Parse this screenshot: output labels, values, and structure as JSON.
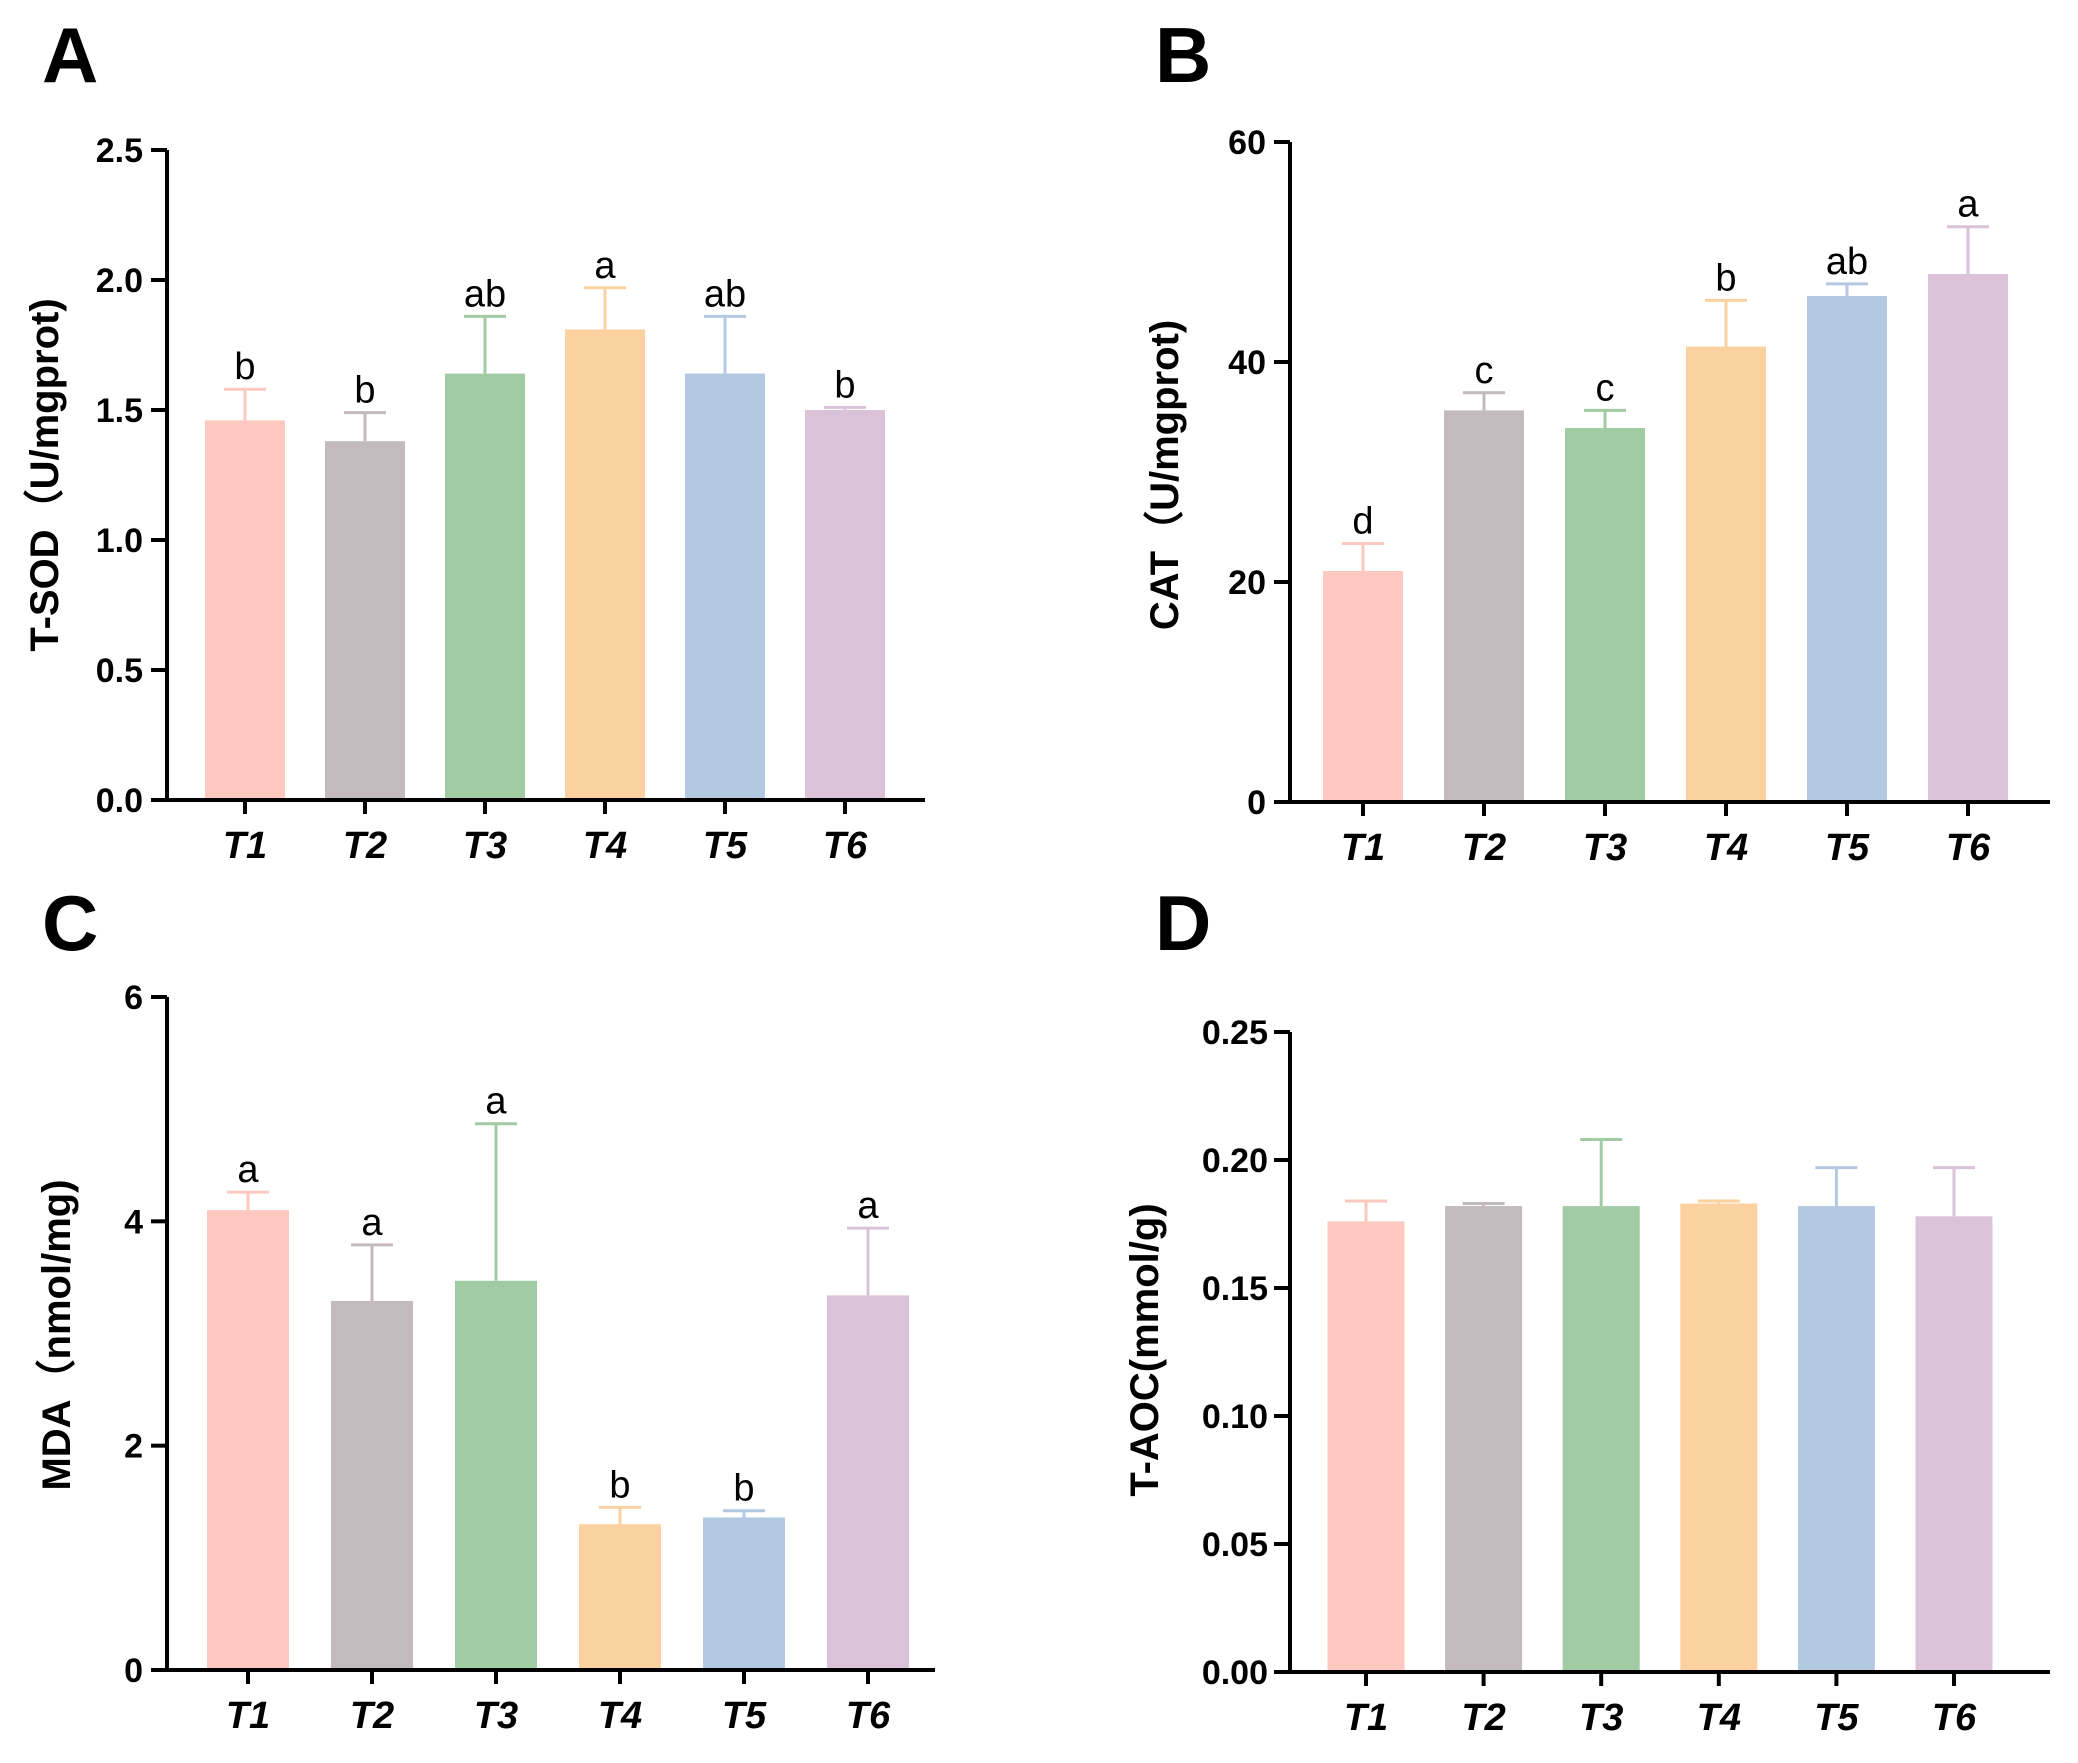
{
  "colors": [
    "#fdc8bf",
    "#c2babd",
    "#a1cba2",
    "#fbd29f",
    "#b3c8e1",
    "#dac2d8"
  ],
  "chart_data": [
    {
      "panel": "A",
      "type": "bar",
      "ylabel": "T-SOD（U/mgprot)",
      "categories": [
        "T1",
        "T2",
        "T3",
        "T4",
        "T5",
        "T6"
      ],
      "values": [
        1.46,
        1.38,
        1.64,
        1.81,
        1.64,
        1.5
      ],
      "errors": [
        0.12,
        0.11,
        0.22,
        0.16,
        0.22,
        0.01
      ],
      "letters": [
        "b",
        "b",
        "ab",
        "a",
        "ab",
        "b"
      ],
      "ylim": [
        0,
        2.5
      ],
      "yticks": [
        "0.0",
        "0.5",
        "1.0",
        "1.5",
        "2.0",
        "2.5"
      ]
    },
    {
      "panel": "B",
      "type": "bar",
      "ylabel": "CAT（U/mgprot)",
      "categories": [
        "T1",
        "T2",
        "T3",
        "T4",
        "T5",
        "T6"
      ],
      "values": [
        21.0,
        35.6,
        34.0,
        41.4,
        46.0,
        48.0
      ],
      "errors": [
        2.5,
        1.6,
        1.6,
        4.2,
        1.1,
        4.3
      ],
      "letters": [
        "d",
        "c",
        "c",
        "b",
        "ab",
        "a"
      ],
      "ylim": [
        0,
        60
      ],
      "yticks": [
        "0",
        "20",
        "40",
        "60"
      ]
    },
    {
      "panel": "C",
      "type": "bar",
      "ylabel": "MDA（nmol/mg)",
      "categories": [
        "T1",
        "T2",
        "T3",
        "T4",
        "T5",
        "T6"
      ],
      "values": [
        4.1,
        3.29,
        3.47,
        1.3,
        1.36,
        3.34
      ],
      "errors": [
        0.16,
        0.5,
        1.4,
        0.15,
        0.06,
        0.6
      ],
      "letters": [
        "a",
        "a",
        "a",
        "b",
        "b",
        "a"
      ],
      "ylim": [
        0,
        6
      ],
      "yticks": [
        "0",
        "2",
        "4",
        "6"
      ]
    },
    {
      "panel": "D",
      "type": "bar",
      "ylabel": "T-AOC(mmol/g)",
      "categories": [
        "T1",
        "T2",
        "T3",
        "T4",
        "T5",
        "T6"
      ],
      "values": [
        0.176,
        0.182,
        0.182,
        0.183,
        0.182,
        0.178
      ],
      "errors": [
        0.008,
        0.001,
        0.026,
        0.001,
        0.015,
        0.019
      ],
      "letters": [
        "",
        "",
        "",
        "",
        "",
        ""
      ],
      "ylim": [
        0,
        0.25
      ],
      "yticks": [
        "0.00",
        "0.05",
        "0.10",
        "0.15",
        "0.20",
        "0.25"
      ]
    }
  ]
}
